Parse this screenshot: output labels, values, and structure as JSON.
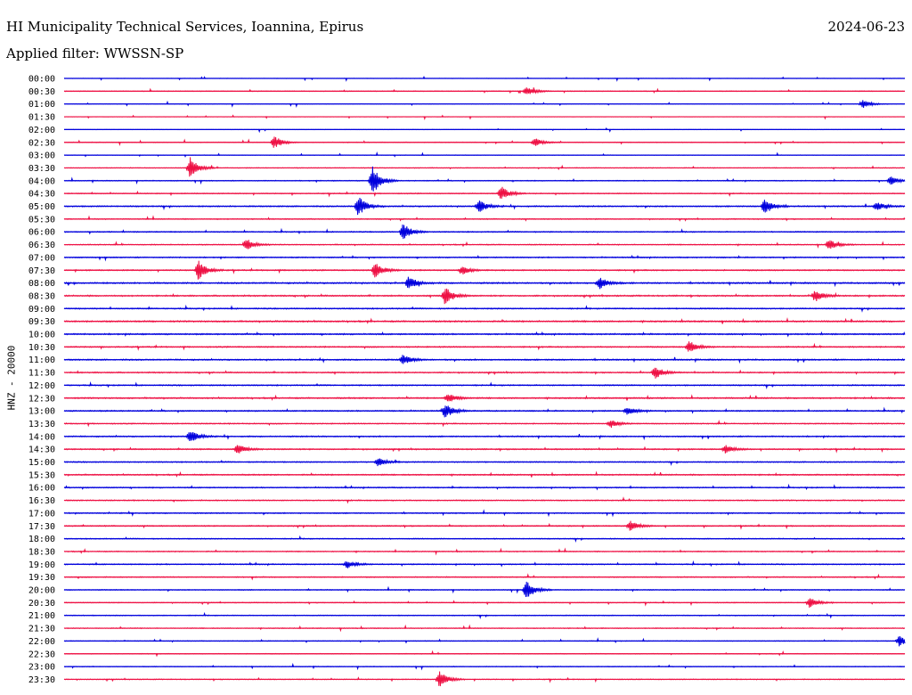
{
  "header": {
    "title": "HI Municipality Technical Services, Ioannina, Epirus",
    "date": "2024-06-23",
    "filter": "Applied filter: WWSSN-SP"
  },
  "chart_data": {
    "type": "line",
    "title": "HI Municipality Technical Services, Ioannina, Epirus",
    "subtitle": "Applied filter: WWSSN-SP",
    "ylabel": "HNZ - 20000",
    "xlabel": "",
    "row_labels": [
      "00:00",
      "00:30",
      "01:00",
      "01:30",
      "02:00",
      "02:30",
      "03:00",
      "03:30",
      "04:00",
      "04:30",
      "05:00",
      "05:30",
      "06:00",
      "06:30",
      "07:00",
      "07:30",
      "08:00",
      "08:30",
      "09:00",
      "09:30",
      "10:00",
      "10:30",
      "11:00",
      "11:30",
      "12:00",
      "12:30",
      "13:00",
      "13:30",
      "14:00",
      "14:30",
      "15:00",
      "15:30",
      "16:00",
      "16:30",
      "17:00",
      "17:30",
      "18:00",
      "18:30",
      "19:00",
      "19:30",
      "20:00",
      "20:30",
      "21:00",
      "21:30",
      "22:00",
      "22:30",
      "23:00",
      "23:30"
    ],
    "row_minutes": 30,
    "colors": [
      "#0000dd",
      "#ee1144"
    ],
    "noise_level": [
      0.15,
      0.3,
      0.2,
      0.15,
      0.15,
      0.3,
      0.2,
      0.3,
      0.35,
      0.4,
      0.5,
      0.4,
      0.45,
      0.4,
      0.45,
      0.5,
      0.6,
      0.55,
      0.5,
      0.6,
      0.55,
      0.5,
      0.55,
      0.5,
      0.5,
      0.55,
      0.5,
      0.45,
      0.5,
      0.5,
      0.45,
      0.5,
      0.45,
      0.45,
      0.45,
      0.45,
      0.4,
      0.4,
      0.45,
      0.4,
      0.35,
      0.35,
      0.35,
      0.35,
      0.3,
      0.3,
      0.3,
      0.35
    ],
    "events": [
      {
        "row": 1,
        "minute": 16.5,
        "amplitude": 2.5
      },
      {
        "row": 2,
        "minute": 28.5,
        "amplitude": 2
      },
      {
        "row": 5,
        "minute": 7.5,
        "amplitude": 3
      },
      {
        "row": 5,
        "minute": 16.8,
        "amplitude": 2
      },
      {
        "row": 7,
        "minute": 4.5,
        "amplitude": 5
      },
      {
        "row": 8,
        "minute": 11,
        "amplitude": 7
      },
      {
        "row": 8,
        "minute": 29.5,
        "amplitude": 2
      },
      {
        "row": 9,
        "minute": 15.6,
        "amplitude": 3.5
      },
      {
        "row": 10,
        "minute": 10.5,
        "amplitude": 5
      },
      {
        "row": 10,
        "minute": 14.8,
        "amplitude": 3
      },
      {
        "row": 10,
        "minute": 25,
        "amplitude": 4
      },
      {
        "row": 10,
        "minute": 29,
        "amplitude": 2
      },
      {
        "row": 12,
        "minute": 12.1,
        "amplitude": 4
      },
      {
        "row": 13,
        "minute": 6.5,
        "amplitude": 3
      },
      {
        "row": 13,
        "minute": 27.3,
        "amplitude": 2.5
      },
      {
        "row": 15,
        "minute": 4.8,
        "amplitude": 5
      },
      {
        "row": 15,
        "minute": 11.1,
        "amplitude": 4
      },
      {
        "row": 15,
        "minute": 14.2,
        "amplitude": 2
      },
      {
        "row": 16,
        "minute": 12.3,
        "amplitude": 3
      },
      {
        "row": 16,
        "minute": 19.1,
        "amplitude": 3
      },
      {
        "row": 17,
        "minute": 13.6,
        "amplitude": 4.5
      },
      {
        "row": 17,
        "minute": 26.8,
        "amplitude": 3
      },
      {
        "row": 21,
        "minute": 22.3,
        "amplitude": 3
      },
      {
        "row": 22,
        "minute": 12.1,
        "amplitude": 2.5
      },
      {
        "row": 23,
        "minute": 21.1,
        "amplitude": 3
      },
      {
        "row": 25,
        "minute": 13.7,
        "amplitude": 2.5
      },
      {
        "row": 26,
        "minute": 13.6,
        "amplitude": 3.5
      },
      {
        "row": 26,
        "minute": 20.1,
        "amplitude": 2
      },
      {
        "row": 27,
        "minute": 19.5,
        "amplitude": 2
      },
      {
        "row": 28,
        "minute": 4.5,
        "amplitude": 3
      },
      {
        "row": 29,
        "minute": 6.2,
        "amplitude": 2.5
      },
      {
        "row": 29,
        "minute": 23.6,
        "amplitude": 2
      },
      {
        "row": 30,
        "minute": 11.2,
        "amplitude": 2
      },
      {
        "row": 35,
        "minute": 20.2,
        "amplitude": 2.5
      },
      {
        "row": 38,
        "minute": 10.1,
        "amplitude": 2
      },
      {
        "row": 40,
        "minute": 16.5,
        "amplitude": 4.5
      },
      {
        "row": 41,
        "minute": 26.6,
        "amplitude": 2.5
      },
      {
        "row": 44,
        "minute": 29.8,
        "amplitude": 2.5
      },
      {
        "row": 47,
        "minute": 13.4,
        "amplitude": 4
      }
    ]
  }
}
